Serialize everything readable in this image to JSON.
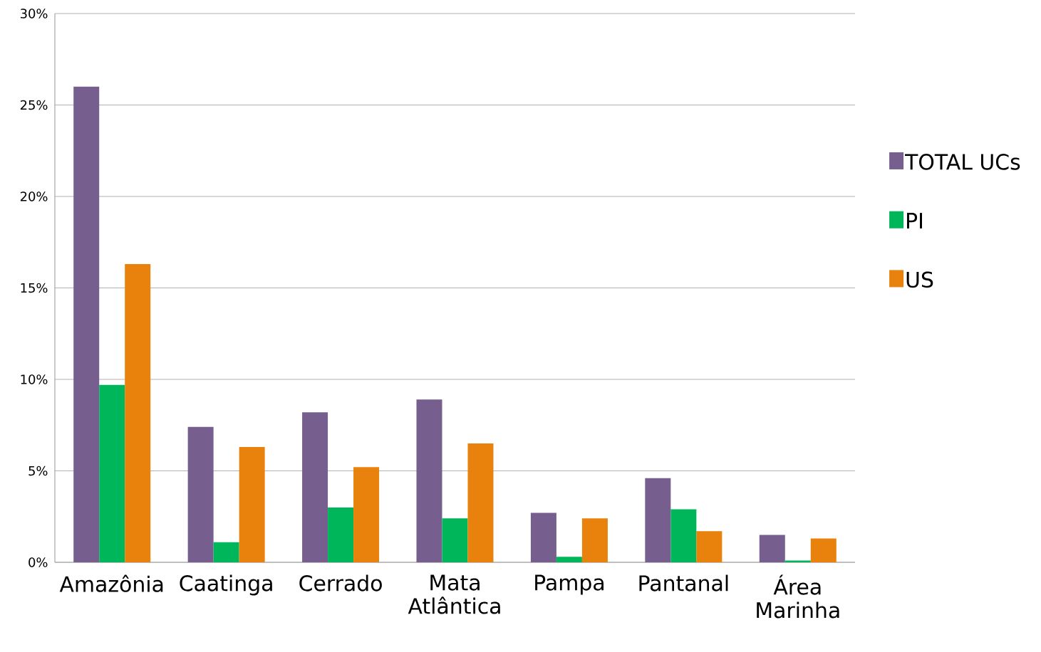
{
  "chart_data": {
    "type": "bar",
    "categories": [
      "Amazônia",
      "Caatinga",
      "Cerrado",
      "Mata Atlântica",
      "Pampa",
      "Pantanal",
      "Área Marinha"
    ],
    "series": [
      {
        "name": "TOTAL UCs",
        "color": "#765e8f",
        "values": [
          26.0,
          7.4,
          8.2,
          8.9,
          2.7,
          4.6,
          1.5
        ]
      },
      {
        "name": "PI",
        "color": "#00b65a",
        "values": [
          9.7,
          1.1,
          3.0,
          2.4,
          0.3,
          2.9,
          0.1
        ]
      },
      {
        "name": "US",
        "color": "#e8820c",
        "values": [
          16.3,
          6.3,
          5.2,
          6.5,
          2.4,
          1.7,
          1.3
        ]
      }
    ],
    "ylim": [
      0,
      30
    ],
    "yticks": [
      {
        "value": 0,
        "label": "0%"
      },
      {
        "value": 5,
        "label": "5%"
      },
      {
        "value": 10,
        "label": "10%"
      },
      {
        "value": 15,
        "label": "15%"
      },
      {
        "value": 20,
        "label": "20%"
      },
      {
        "value": 25,
        "label": "25%"
      },
      {
        "value": 30,
        "label": "30%"
      }
    ],
    "grid": "y",
    "legend": "right"
  }
}
